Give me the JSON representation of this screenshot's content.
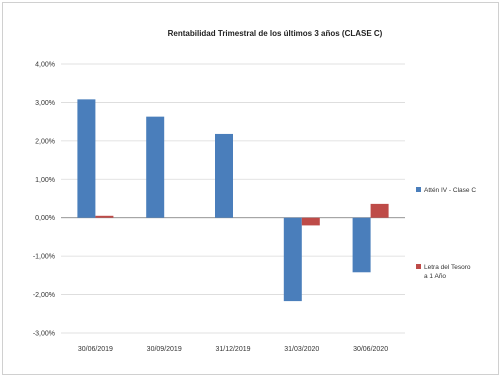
{
  "chart_data": {
    "type": "bar",
    "title": "Rentabilidad Trimestral de los últimos 3 años (CLASE C)",
    "categories": [
      "30/06/2019",
      "30/09/2019",
      "31/12/2019",
      "31/03/2020",
      "30/06/2020"
    ],
    "series": [
      {
        "name": "Attén IV - Clase C",
        "values": [
          3.08,
          2.63,
          2.18,
          -2.17,
          -1.42
        ],
        "color": "#4a7ebb"
      },
      {
        "name": "Letra del Tesoro a 1 Año",
        "values": [
          0.05,
          0.0,
          0.0,
          -0.2,
          0.36
        ],
        "color": "#be4b48"
      }
    ],
    "y_ticks": [
      "4,00%",
      "3,00%",
      "2,00%",
      "1,00%",
      "0,00%",
      "-1,00%",
      "-2,00%",
      "-3,00%"
    ],
    "ylim": [
      -3,
      4
    ],
    "xlabel": "",
    "ylabel": "",
    "grid": true,
    "legend_position": "right"
  }
}
